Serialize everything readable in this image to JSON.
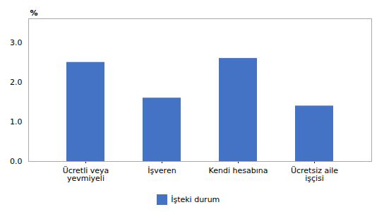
{
  "chart_data": {
    "type": "bar",
    "categories": [
      "Ücretli veya\nyevmiyeli",
      "İşveren",
      "Kendi hesabına",
      "Ücretsiz aile\nişçisi"
    ],
    "series": [
      {
        "name": "İşteki durum",
        "color": "#4472C4",
        "values": [
          2.5,
          1.6,
          2.6,
          1.4
        ]
      }
    ],
    "ylabel": "%",
    "ylim": [
      0,
      3.6
    ],
    "yticks": [
      {
        "value": 0.0,
        "label": "0.0"
      },
      {
        "value": 1.0,
        "label": "1.0"
      },
      {
        "value": 2.0,
        "label": "2.0"
      },
      {
        "value": 3.0,
        "label": "3.0"
      }
    ],
    "grid": false,
    "legend": "bottom"
  }
}
